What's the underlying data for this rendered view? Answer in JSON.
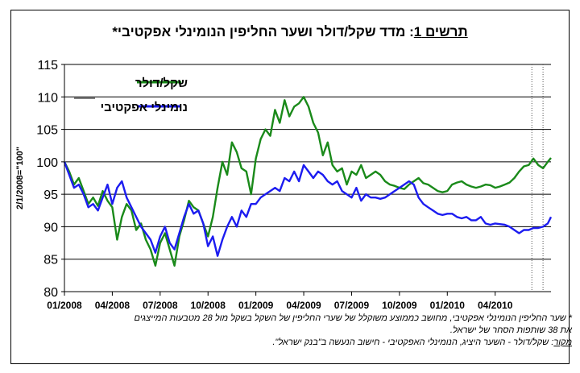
{
  "title": {
    "prefix": "תרשים 1",
    "text": ": מדד שקל/דולר ושער החליפין הנומינלי אפקטיבי*"
  },
  "colors": {
    "usd": "#1a8a1a",
    "eff": "#1c1cf0",
    "grid": "#000000"
  },
  "notes": {
    "line1": "* שער החליפין הנומינלי אפקטיבי, מחושב כממוצע משוקלל של שערי החליפין של השקל בשקל מול 28 מטבעות המייצגים",
    "line2": "את 38 שותפות הסחר של ישראל.",
    "source_label": "מקור",
    "source_text": ": שקל/דולר - השער היציג, הנומינלי האפקטיבי - חישוב הנעשה ב\"בנק ישראל\"."
  },
  "chart_data": {
    "type": "line",
    "ylabel": "2/1/2008=\"100\"",
    "ylim": [
      80,
      115
    ],
    "yticks": [
      "80",
      "85",
      "90",
      "95",
      "100",
      "105",
      "110",
      "115"
    ],
    "xtick_labels": [
      "01/2008",
      "04/2008",
      "07/2008",
      "10/2008",
      "01/2009",
      "04/2009",
      "07/2009",
      "10/2009",
      "01/2010",
      "04/2010"
    ],
    "x_months": [
      0,
      3,
      6,
      9,
      12,
      15,
      18,
      21,
      24,
      27
    ],
    "xlim_months": [
      0,
      30.5
    ],
    "dotted_vlines_months": [
      29.3,
      30.0
    ],
    "grid": "horizontal",
    "legend": "top-left",
    "series": [
      {
        "name": "שקל/דולר",
        "color": "#1a8a1a",
        "x": [
          0,
          0.3,
          0.6,
          0.9,
          1.2,
          1.5,
          1.8,
          2.1,
          2.4,
          2.7,
          3.0,
          3.3,
          3.6,
          3.9,
          4.2,
          4.5,
          4.8,
          5.1,
          5.4,
          5.7,
          6.0,
          6.3,
          6.6,
          6.9,
          7.2,
          7.5,
          7.8,
          8.1,
          8.4,
          8.7,
          9.0,
          9.3,
          9.6,
          9.9,
          10.2,
          10.5,
          10.8,
          11.1,
          11.4,
          11.7,
          12.0,
          12.3,
          12.6,
          12.9,
          13.2,
          13.5,
          13.8,
          14.1,
          14.4,
          14.7,
          15.0,
          15.3,
          15.6,
          15.9,
          16.2,
          16.5,
          16.8,
          17.1,
          17.4,
          17.7,
          18.0,
          18.3,
          18.6,
          18.9,
          19.2,
          19.5,
          19.8,
          20.1,
          20.4,
          20.7,
          21.0,
          21.3,
          21.6,
          21.9,
          22.2,
          22.5,
          22.8,
          23.1,
          23.4,
          23.7,
          24.0,
          24.3,
          24.6,
          24.9,
          25.2,
          25.5,
          25.8,
          26.1,
          26.4,
          26.7,
          27.0,
          27.3,
          27.6,
          27.9,
          28.2,
          28.5,
          28.8,
          29.1,
          29.4,
          29.7,
          30.0,
          30.3,
          30.5
        ],
        "y": [
          100,
          98.5,
          96.5,
          97.5,
          95.5,
          93.5,
          94.5,
          93.2,
          95.5,
          94,
          93,
          88,
          91.5,
          93.5,
          92.5,
          89.5,
          90.5,
          88,
          86.5,
          84,
          87.5,
          89,
          86.5,
          84,
          88.5,
          91,
          94,
          93,
          92.5,
          90.5,
          88.5,
          91.5,
          96,
          100,
          98,
          103,
          101.5,
          99,
          98.5,
          95,
          100.5,
          103.5,
          105,
          104,
          108,
          106,
          109.5,
          107,
          108.5,
          109,
          110,
          108.5,
          106,
          104.5,
          101,
          103,
          99.5,
          98.5,
          99,
          96.5,
          98.5,
          98,
          99.5,
          97.5,
          98,
          98.5,
          98,
          97,
          96.5,
          96.3,
          96,
          95.8,
          96.5,
          97,
          97.5,
          96.7,
          96.5,
          96,
          95.5,
          95.3,
          95.5,
          96.5,
          96.8,
          97,
          96.5,
          96.2,
          96,
          96.2,
          96.5,
          96.4,
          96,
          96.2,
          96.5,
          96.8,
          97.5,
          98.5,
          99.3,
          99.5,
          100.5,
          99.5,
          99,
          100,
          100.6
        ]
      },
      {
        "name": "נומינלי אפקטיבי",
        "color": "#1c1cf0",
        "x": [
          0,
          0.3,
          0.6,
          0.9,
          1.2,
          1.5,
          1.8,
          2.1,
          2.4,
          2.7,
          3.0,
          3.3,
          3.6,
          3.9,
          4.2,
          4.5,
          4.8,
          5.1,
          5.4,
          5.7,
          6.0,
          6.3,
          6.6,
          6.9,
          7.2,
          7.5,
          7.8,
          8.1,
          8.4,
          8.7,
          9.0,
          9.3,
          9.6,
          9.9,
          10.2,
          10.5,
          10.8,
          11.1,
          11.4,
          11.7,
          12.0,
          12.3,
          12.6,
          12.9,
          13.2,
          13.5,
          13.8,
          14.1,
          14.4,
          14.7,
          15.0,
          15.3,
          15.6,
          15.9,
          16.2,
          16.5,
          16.8,
          17.1,
          17.4,
          17.7,
          18.0,
          18.3,
          18.6,
          18.9,
          19.2,
          19.5,
          19.8,
          20.1,
          20.4,
          20.7,
          21.0,
          21.3,
          21.6,
          21.9,
          22.2,
          22.5,
          22.8,
          23.1,
          23.4,
          23.7,
          24.0,
          24.3,
          24.6,
          24.9,
          25.2,
          25.5,
          25.8,
          26.1,
          26.4,
          26.7,
          27.0,
          27.3,
          27.6,
          27.9,
          28.2,
          28.5,
          28.8,
          29.1,
          29.4,
          29.7,
          30.0,
          30.3,
          30.5
        ],
        "y": [
          100,
          98,
          96,
          96.5,
          95,
          93,
          93.5,
          92.5,
          94.5,
          96.5,
          93.5,
          96,
          97,
          94.5,
          93,
          91.5,
          90,
          89,
          88,
          86,
          88.5,
          90,
          87.5,
          86.5,
          89,
          91.5,
          93.5,
          92,
          92.5,
          90.5,
          87,
          88.5,
          85.5,
          88,
          90,
          91.5,
          90,
          92.5,
          91.5,
          93.5,
          93.5,
          94.5,
          95,
          95.5,
          96,
          95.5,
          97.5,
          97,
          98.5,
          97,
          99.5,
          98.5,
          97.5,
          98.5,
          98,
          97,
          96.5,
          97,
          95.5,
          95,
          94.5,
          96,
          94,
          95,
          94.5,
          94.5,
          94.3,
          94.5,
          95,
          95.5,
          96,
          96.5,
          97,
          96.5,
          94.5,
          93.5,
          93,
          92.5,
          92,
          91.8,
          92,
          92,
          91.5,
          91.3,
          91.5,
          91,
          91,
          91.5,
          90.5,
          90.3,
          90.5,
          90.4,
          90.3,
          90,
          89.5,
          89,
          89.5,
          89.5,
          89.8,
          89.8,
          90,
          90.5,
          91.5
        ]
      }
    ]
  }
}
